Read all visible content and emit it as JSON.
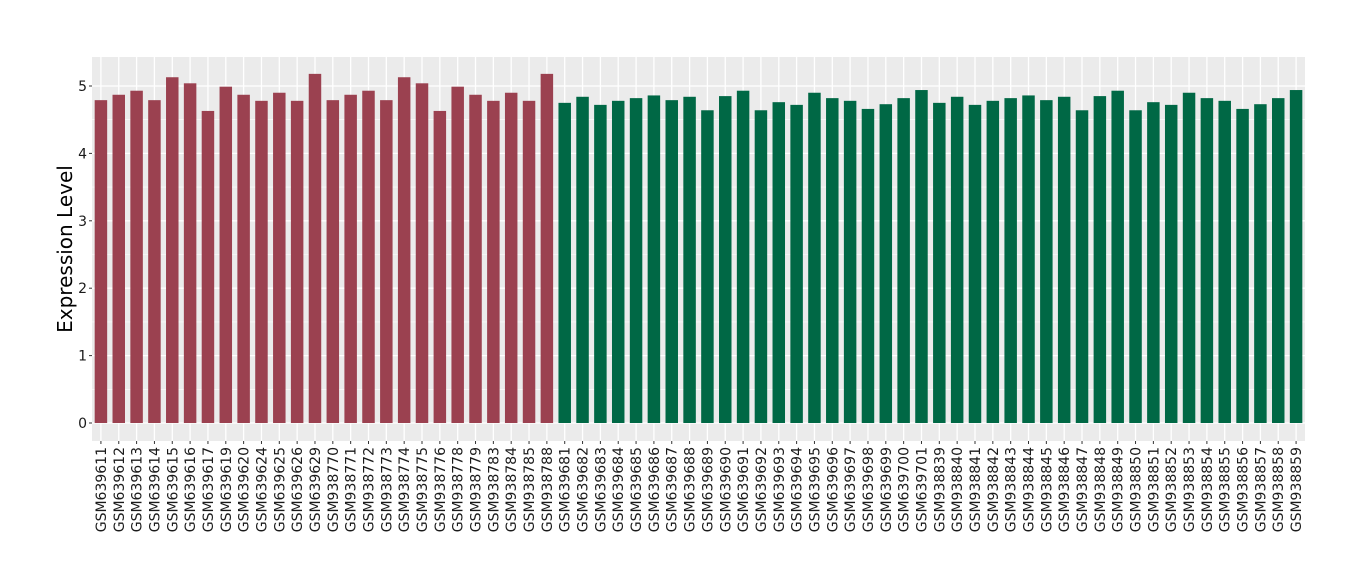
{
  "chart_data": {
    "type": "bar",
    "title": "",
    "xlabel": "",
    "ylabel": "Expression Level",
    "ylim": [
      0,
      5.4
    ],
    "yticks": [
      0,
      1,
      2,
      3,
      4,
      5
    ],
    "grid": true,
    "legend": "none",
    "colors": {
      "group1": "#9B4150",
      "group2": "#006845",
      "panel": "#EBEBEB",
      "grid": "#FFFFFF"
    },
    "categories": [
      "GSM639611",
      "GSM639612",
      "GSM639613",
      "GSM639614",
      "GSM639615",
      "GSM639616",
      "GSM639617",
      "GSM639619",
      "GSM639620",
      "GSM639624",
      "GSM639625",
      "GSM639626",
      "GSM639629",
      "GSM938770",
      "GSM938771",
      "GSM938772",
      "GSM938773",
      "GSM938774",
      "GSM938775",
      "GSM938776",
      "GSM938778",
      "GSM938779",
      "GSM938783",
      "GSM938784",
      "GSM938785",
      "GSM938788",
      "GSM639681",
      "GSM639682",
      "GSM639683",
      "GSM639684",
      "GSM639685",
      "GSM639686",
      "GSM639687",
      "GSM639688",
      "GSM639689",
      "GSM639690",
      "GSM639691",
      "GSM639692",
      "GSM639693",
      "GSM639694",
      "GSM639695",
      "GSM639696",
      "GSM639697",
      "GSM639698",
      "GSM639699",
      "GSM639700",
      "GSM639701",
      "GSM938839",
      "GSM938840",
      "GSM938841",
      "GSM938842",
      "GSM938843",
      "GSM938844",
      "GSM938845",
      "GSM938846",
      "GSM938847",
      "GSM938848",
      "GSM938849",
      "GSM938850",
      "GSM938851",
      "GSM938852",
      "GSM938853",
      "GSM938854",
      "GSM938855",
      "GSM938856",
      "GSM938857",
      "GSM938858",
      "GSM938859"
    ],
    "values": [
      4.79,
      4.87,
      4.93,
      4.79,
      5.13,
      5.04,
      4.63,
      4.99,
      4.87,
      4.78,
      4.9,
      4.78,
      5.18,
      4.79,
      4.87,
      4.93,
      4.79,
      5.13,
      5.04,
      4.63,
      4.99,
      4.87,
      4.78,
      4.9,
      4.78,
      5.18,
      4.75,
      4.84,
      4.72,
      4.78,
      4.82,
      4.86,
      4.79,
      4.84,
      4.64,
      4.85,
      4.93,
      4.64,
      4.76,
      4.72,
      4.9,
      4.82,
      4.78,
      4.66,
      4.73,
      4.82,
      4.94,
      4.75,
      4.84,
      4.72,
      4.78,
      4.82,
      4.86,
      4.79,
      4.84,
      4.64,
      4.85,
      4.93,
      4.64,
      4.76,
      4.72,
      4.9,
      4.82,
      4.78,
      4.66,
      4.73,
      4.82,
      4.94
    ],
    "groups": [
      1,
      1,
      1,
      1,
      1,
      1,
      1,
      1,
      1,
      1,
      1,
      1,
      1,
      1,
      1,
      1,
      1,
      1,
      1,
      1,
      1,
      1,
      1,
      1,
      1,
      1,
      2,
      2,
      2,
      2,
      2,
      2,
      2,
      2,
      2,
      2,
      2,
      2,
      2,
      2,
      2,
      2,
      2,
      2,
      2,
      2,
      2,
      2,
      2,
      2,
      2,
      2,
      2,
      2,
      2,
      2,
      2,
      2,
      2,
      2,
      2,
      2,
      2,
      2,
      2,
      2,
      2,
      2
    ]
  }
}
